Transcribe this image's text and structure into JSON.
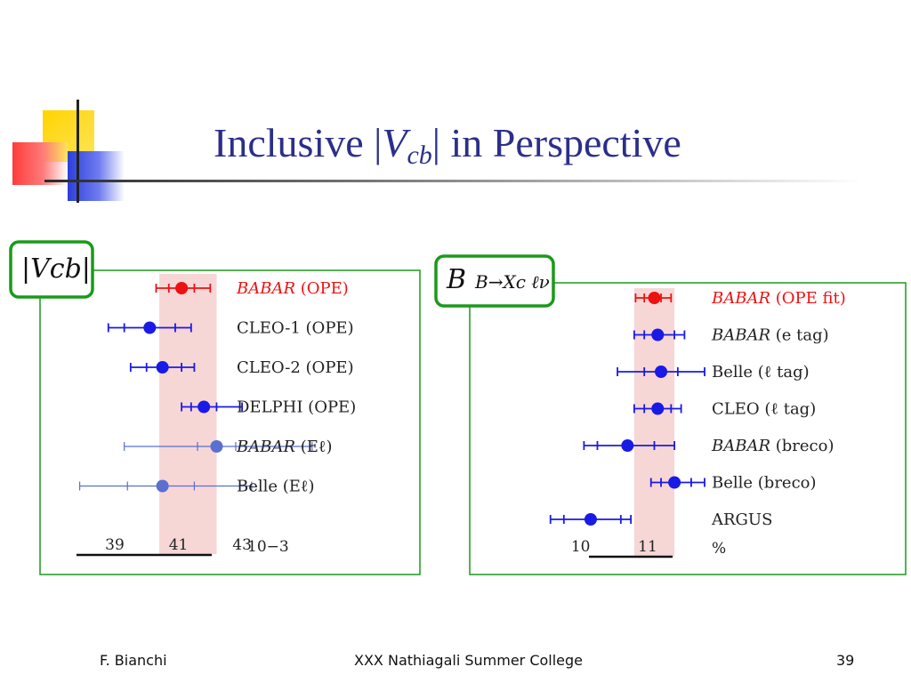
{
  "slide": {
    "title_prefix": "Inclusive |",
    "title_var": "V",
    "title_sub": "cb",
    "title_suffix": "| in Perspective"
  },
  "footer": {
    "author": "F. Bianchi",
    "event": "XXX Nathiagali Summer College",
    "page": "39"
  },
  "colors": {
    "red": "#ee1111",
    "blue": "#1a1ae6",
    "light_blue": "#5a6fd0",
    "band": "#f7d6d6",
    "green_frame": "#1a9a1a",
    "title": "#2b2f8a"
  },
  "chart_data": [
    {
      "type": "scatter",
      "label_box": "|Vcb|",
      "unit": "10−3",
      "xlim": [
        37.8,
        45.4
      ],
      "ticks": [
        39,
        41,
        43
      ],
      "band": [
        40.4,
        42.2
      ],
      "points": [
        {
          "label_italic": "BABAR",
          "label": " (OPE)",
          "value": 41.1,
          "inner": [
            40.7,
            41.5
          ],
          "outer": [
            40.3,
            42.0
          ],
          "color": "red"
        },
        {
          "label_italic": "",
          "label": "CLEO-1 (OPE)",
          "value": 40.1,
          "inner": [
            39.3,
            40.9
          ],
          "outer": [
            38.8,
            41.4
          ],
          "color": "blue"
        },
        {
          "label_italic": "",
          "label": "CLEO-2 (OPE)",
          "value": 40.5,
          "inner": [
            40.0,
            41.1
          ],
          "outer": [
            39.5,
            41.5
          ],
          "color": "blue"
        },
        {
          "label_italic": "",
          "label": "DELPHI (OPE)",
          "value": 41.8,
          "inner": [
            41.4,
            42.2
          ],
          "outer": [
            41.1,
            43.0
          ],
          "color": "blue"
        },
        {
          "label_italic": "BABAR",
          "label": " (Eℓ)",
          "value": 42.2,
          "inner": [
            41.6,
            42.8
          ],
          "outer": [
            39.3,
            45.2
          ],
          "color": "light_blue"
        },
        {
          "label_italic": "",
          "label": "Belle (Eℓ)",
          "value": 40.5,
          "inner": [
            39.4,
            41.5
          ],
          "outer": [
            37.9,
            43.3
          ],
          "color": "light_blue"
        }
      ]
    },
    {
      "type": "scatter",
      "label_box_prefix": "B",
      "label_box": "B→Xc ℓν",
      "unit": "%",
      "xlim": [
        8.85,
        11.85
      ],
      "ticks": [
        10,
        11
      ],
      "band": [
        10.8,
        11.4
      ],
      "points": [
        {
          "label_italic": "BABAR",
          "label": " (OPE fit)",
          "value": 11.1,
          "inner": [
            10.95,
            11.2
          ],
          "outer": [
            10.82,
            11.35
          ],
          "color": "red"
        },
        {
          "label_italic": "BABAR",
          "label": " (e tag)",
          "value": 11.15,
          "inner": [
            10.95,
            11.4
          ],
          "outer": [
            10.8,
            11.55
          ],
          "color": "blue"
        },
        {
          "label_italic": "",
          "label": "Belle (ℓ tag)",
          "value": 11.2,
          "inner": [
            10.95,
            11.45
          ],
          "outer": [
            10.55,
            11.85
          ],
          "color": "blue"
        },
        {
          "label_italic": "",
          "label": "CLEO (ℓ tag)",
          "value": 11.15,
          "inner": [
            10.95,
            11.35
          ],
          "outer": [
            10.8,
            11.5
          ],
          "color": "blue"
        },
        {
          "label_italic": "BABAR",
          "label": " (breco)",
          "value": 10.7,
          "inner": [
            10.25,
            11.1
          ],
          "outer": [
            10.05,
            11.4
          ],
          "color": "blue"
        },
        {
          "label_italic": "",
          "label": "Belle (breco)",
          "value": 11.4,
          "inner": [
            11.2,
            11.65
          ],
          "outer": [
            11.05,
            11.85
          ],
          "color": "blue"
        },
        {
          "label_italic": "",
          "label": "ARGUS",
          "value": 10.15,
          "inner": [
            9.75,
            10.6
          ],
          "outer": [
            9.55,
            10.75
          ],
          "color": "blue"
        }
      ]
    }
  ]
}
